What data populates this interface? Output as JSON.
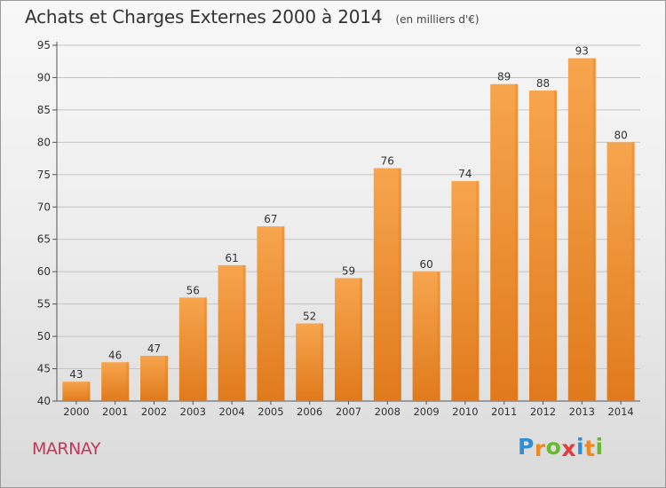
{
  "header": {
    "title": "Achats et Charges Externes 2000 à 2014",
    "subtitle": "(en milliers d'€)"
  },
  "footer": {
    "commune": "MARNAY",
    "brand": "Proxiti",
    "brand_letters": [
      {
        "char": "P",
        "color": "#2e8fd8"
      },
      {
        "char": "r",
        "color": "#f08a1c"
      },
      {
        "char": "o",
        "color": "#6ab82e"
      },
      {
        "char": "x",
        "color": "#e23b3b"
      },
      {
        "char": "i",
        "color": "#2e8fd8"
      },
      {
        "char": "t",
        "color": "#f08a1c"
      },
      {
        "char": "i",
        "color": "#6ab82e"
      }
    ]
  },
  "colors": {
    "bar_light": "#f7a54e",
    "bar_dark": "#e07a1c",
    "grid": "#c4c4c4",
    "axis": "#555555",
    "text": "#333333"
  },
  "chart_data": {
    "type": "bar",
    "title": "Achats et Charges Externes 2000 à 2014",
    "subtitle": "(en milliers d'€)",
    "xlabel": "",
    "ylabel": "",
    "categories": [
      "2000",
      "2001",
      "2002",
      "2003",
      "2004",
      "2005",
      "2006",
      "2007",
      "2008",
      "2009",
      "2010",
      "2011",
      "2012",
      "2013",
      "2014"
    ],
    "values": [
      43,
      46,
      47,
      56,
      61,
      67,
      52,
      59,
      76,
      60,
      74,
      89,
      88,
      93,
      80
    ],
    "ylim": [
      40,
      95
    ],
    "yticks": [
      40,
      45,
      50,
      55,
      60,
      65,
      70,
      75,
      80,
      85,
      90,
      95
    ],
    "grid": true,
    "data_labels": true
  }
}
